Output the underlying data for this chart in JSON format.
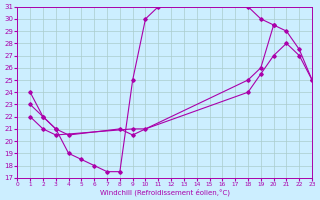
{
  "bg_color": "#cceeff",
  "grid_color": "#aacccc",
  "line_color": "#aa00aa",
  "xlabel": "Windchill (Refroidissement éolien,°C)",
  "xlim": [
    0,
    23
  ],
  "ylim": [
    17,
    31
  ],
  "xticks": [
    0,
    1,
    2,
    3,
    4,
    5,
    6,
    7,
    8,
    9,
    10,
    11,
    12,
    13,
    14,
    15,
    16,
    17,
    18,
    19,
    20,
    21,
    22,
    23
  ],
  "yticks": [
    17,
    18,
    19,
    20,
    21,
    22,
    23,
    24,
    25,
    26,
    27,
    28,
    29,
    30,
    31
  ],
  "curve1_x": [
    1,
    2,
    3,
    4,
    5,
    6,
    7,
    8,
    9,
    10,
    11,
    12,
    13,
    14,
    15,
    16,
    17,
    18,
    19,
    20
  ],
  "curve1_y": [
    24,
    22,
    21,
    19,
    18.5,
    18,
    17.5,
    17.5,
    25,
    30,
    31,
    31.5,
    31.5,
    31.5,
    31.5,
    31.5,
    31.5,
    31,
    30,
    29.5
  ],
  "curve2_x": [
    1,
    2,
    3,
    4,
    8,
    9,
    18,
    19,
    20,
    21,
    22,
    23
  ],
  "curve2_y": [
    23,
    22,
    21,
    20.5,
    21,
    20.5,
    25,
    26,
    29.5,
    29,
    27.5,
    25
  ],
  "curve3_x": [
    1,
    2,
    3,
    9,
    10,
    18,
    19,
    20,
    21,
    22,
    23
  ],
  "curve3_y": [
    22,
    21,
    20.5,
    21,
    21,
    24,
    25.5,
    27,
    28,
    27,
    25
  ]
}
